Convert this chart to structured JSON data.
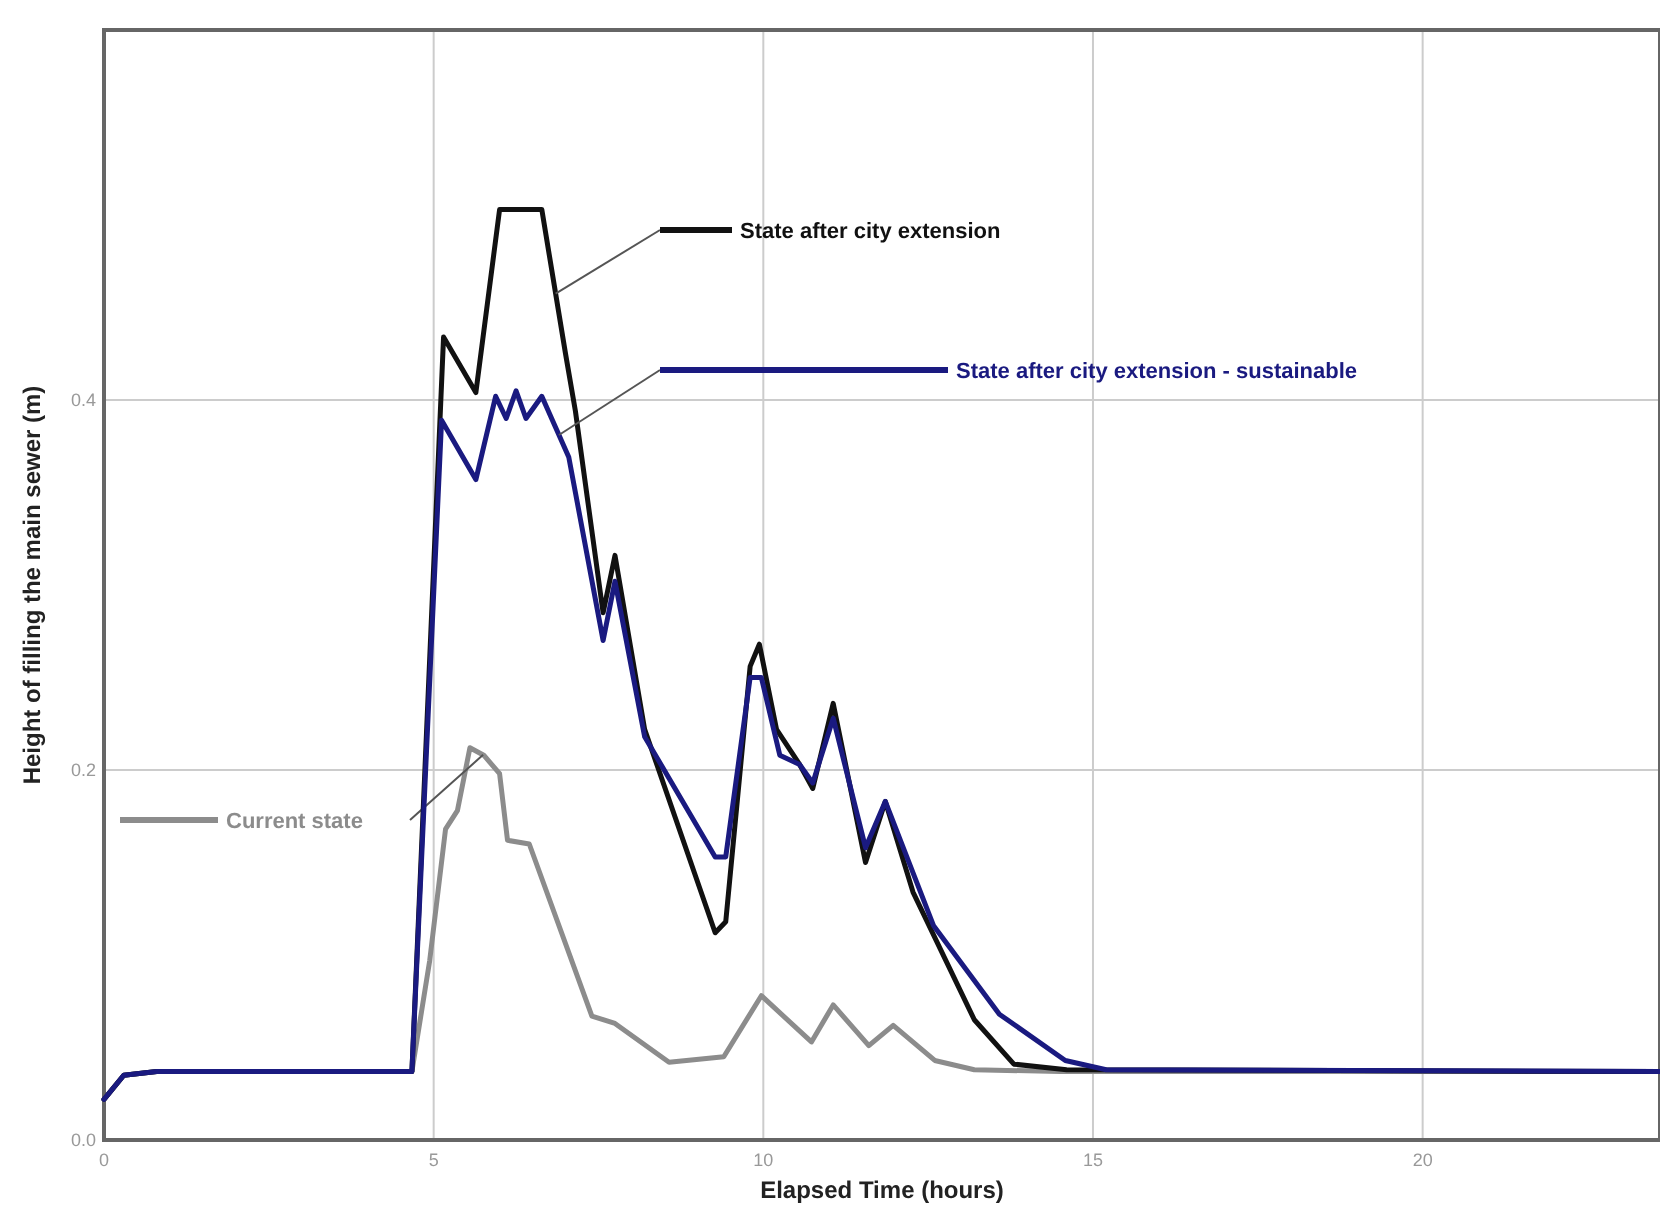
{
  "chart_data": {
    "type": "line",
    "xlabel": "Elapsed Time (hours)",
    "ylabel": "Height of filling the main sewer (m)",
    "xlim": [
      0,
      23.6
    ],
    "ylim": [
      0,
      0.6
    ],
    "xticks": [
      0,
      5,
      10,
      15,
      20
    ],
    "yticks": [
      {
        "value": 0,
        "label": "0.0"
      },
      {
        "value": 0.2,
        "label": "0.2"
      },
      {
        "value": 0.4,
        "label": "0.4"
      }
    ],
    "grid": true,
    "legend": "top",
    "marker": "none",
    "line_style": "solid",
    "series": [
      {
        "name": "Current state",
        "color": "#8c8c8c",
        "x": [
          0,
          0.3,
          0.8,
          4.67,
          4.94,
          5.18,
          5.36,
          5.55,
          5.76,
          6.0,
          6.12,
          6.45,
          7.4,
          7.75,
          8.57,
          9.4,
          9.97,
          10.73,
          11.06,
          11.6,
          11.97,
          12.6,
          13.2,
          14.5,
          23.6
        ],
        "values": [
          0.022,
          0.035,
          0.037,
          0.037,
          0.097,
          0.168,
          0.178,
          0.212,
          0.208,
          0.198,
          0.162,
          0.16,
          0.067,
          0.063,
          0.042,
          0.045,
          0.078,
          0.053,
          0.073,
          0.051,
          0.062,
          0.043,
          0.038,
          0.037,
          0.037
        ]
      },
      {
        "name": "State after city extension",
        "color": "#111111",
        "x": [
          0,
          0.3,
          0.8,
          4.67,
          5.15,
          5.64,
          6.0,
          6.64,
          7.0,
          7.15,
          7.57,
          7.75,
          8.2,
          9.27,
          9.43,
          9.8,
          9.94,
          10.2,
          10.55,
          10.75,
          11.06,
          11.55,
          11.85,
          12.27,
          13.2,
          13.8,
          14.6,
          23.6
        ],
        "values": [
          0.022,
          0.035,
          0.037,
          0.037,
          0.434,
          0.404,
          0.503,
          0.503,
          0.425,
          0.394,
          0.285,
          0.316,
          0.222,
          0.112,
          0.118,
          0.256,
          0.268,
          0.222,
          0.203,
          0.19,
          0.236,
          0.15,
          0.183,
          0.134,
          0.065,
          0.041,
          0.038,
          0.037
        ]
      },
      {
        "name": "State after city extension - sustainable",
        "color": "#1a1a80",
        "x": [
          0,
          0.3,
          0.8,
          4.67,
          5.12,
          5.64,
          5.94,
          6.1,
          6.25,
          6.4,
          6.64,
          7.05,
          7.57,
          7.75,
          8.2,
          9.27,
          9.43,
          9.8,
          9.97,
          10.25,
          10.55,
          10.75,
          11.06,
          11.55,
          11.85,
          12.58,
          13.58,
          14.58,
          15.2,
          23.6
        ],
        "values": [
          0.022,
          0.035,
          0.037,
          0.037,
          0.389,
          0.357,
          0.402,
          0.39,
          0.405,
          0.39,
          0.402,
          0.369,
          0.27,
          0.302,
          0.218,
          0.153,
          0.153,
          0.25,
          0.25,
          0.208,
          0.203,
          0.193,
          0.228,
          0.158,
          0.183,
          0.116,
          0.068,
          0.043,
          0.038,
          0.037
        ]
      }
    ]
  }
}
